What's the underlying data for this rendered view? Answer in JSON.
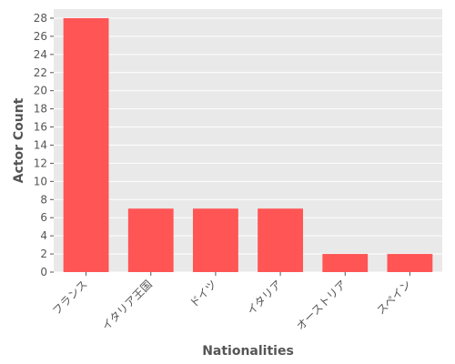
{
  "chart_data": {
    "type": "bar",
    "xlabel": "Nationalities",
    "ylabel": "Actor Count",
    "categories": [
      "フランス",
      "イタリア王国",
      "ドイツ",
      "イタリア",
      "オーストリア",
      "スペイン"
    ],
    "values": [
      28,
      7,
      7,
      7,
      2,
      2
    ],
    "ylim": [
      0,
      29
    ],
    "yticks": [
      0,
      2,
      4,
      6,
      8,
      10,
      12,
      14,
      16,
      18,
      20,
      22,
      24,
      26,
      28
    ],
    "grid": true,
    "bar_color": "#ff5555",
    "background_color": "#e9e9e9",
    "grid_color": "#ffffff"
  }
}
